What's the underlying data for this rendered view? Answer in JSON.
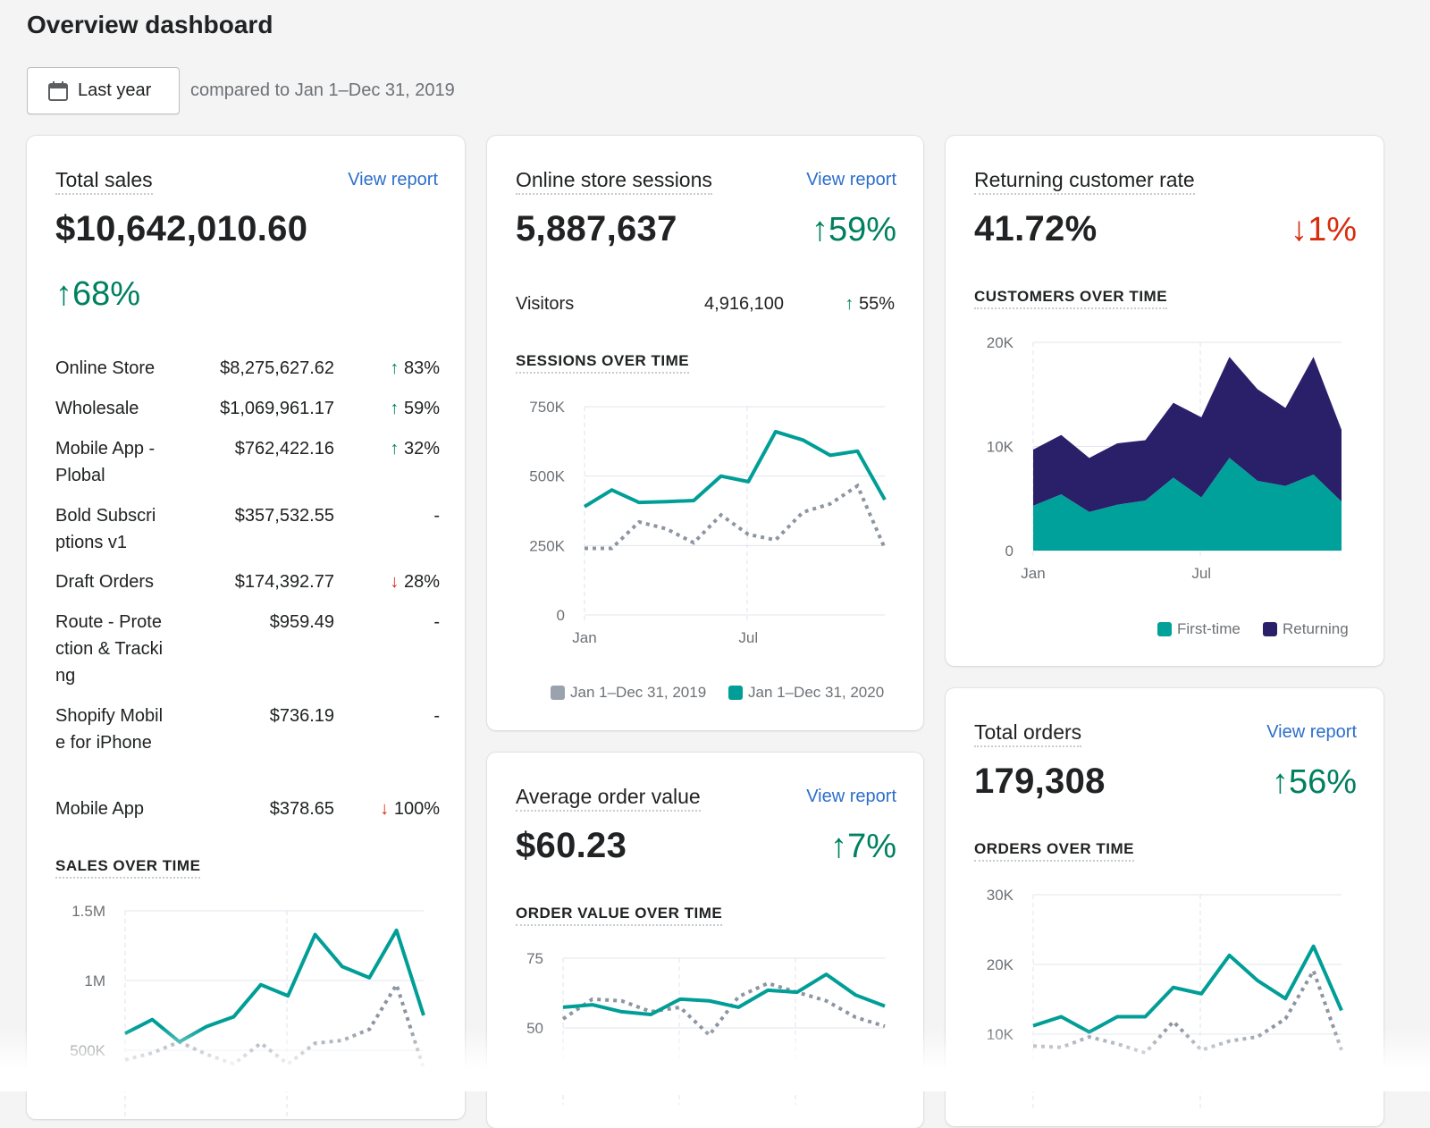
{
  "page": {
    "title": "Overview dashboard",
    "date_button": "Last year",
    "compare_text": "compared to Jan 1–Dec 31, 2019"
  },
  "colors": {
    "current": "#009e96",
    "previous": "#8c95a1",
    "returning": "#2a206a",
    "up": "#008060",
    "down": "#d72c0d",
    "link": "#2c6ecb"
  },
  "total_sales": {
    "title": "Total sales",
    "view_report": "View report",
    "value": "$10,642,010.60",
    "change": "68%",
    "change_dir": "up",
    "rows": [
      {
        "name": "Online Store",
        "value": "$8,275,627.62",
        "change": "83%",
        "dir": "up"
      },
      {
        "name": "Wholesale",
        "value": "$1,069,961.17",
        "change": "59%",
        "dir": "up"
      },
      {
        "name": "Mobile App - Plobal",
        "value": "$762,422.16",
        "change": "32%",
        "dir": "up"
      },
      {
        "name": "Bold Subscriptions v1",
        "value": "$357,532.55",
        "change": "-",
        "dir": "none"
      },
      {
        "name": "Draft Orders",
        "value": "$174,392.77",
        "change": "28%",
        "dir": "down"
      },
      {
        "name": "Route - Protection & Tracking",
        "value": "$959.49",
        "change": "-",
        "dir": "none"
      },
      {
        "name": "Shopify Mobile for iPhone",
        "value": "$736.19",
        "change": "-",
        "dir": "none"
      },
      {
        "name": "Mobile App",
        "value": "$378.65",
        "change": "100%",
        "dir": "down"
      }
    ],
    "chart_title": "SALES OVER TIME"
  },
  "sessions": {
    "title": "Online store sessions",
    "view_report": "View report",
    "value": "5,887,637",
    "change": "59%",
    "change_dir": "up",
    "visitors_label": "Visitors",
    "visitors_value": "4,916,100",
    "visitors_change": "55%",
    "chart_title": "SESSIONS OVER TIME",
    "legend": [
      "Jan 1–Dec 31, 2019",
      "Jan 1–Dec 31, 2020"
    ]
  },
  "returning": {
    "title": "Returning customer rate",
    "value": "41.72%",
    "change": "1%",
    "change_dir": "down",
    "chart_title": "CUSTOMERS OVER TIME",
    "legend": [
      "First-time",
      "Returning"
    ]
  },
  "aov": {
    "title": "Average order value",
    "view_report": "View report",
    "value": "$60.23",
    "change": "7%",
    "change_dir": "up",
    "chart_title": "ORDER VALUE OVER TIME"
  },
  "orders": {
    "title": "Total orders",
    "view_report": "View report",
    "value": "179,308",
    "change": "56%",
    "change_dir": "up",
    "chart_title": "ORDERS OVER TIME"
  },
  "chart_data": [
    {
      "id": "sales",
      "type": "line",
      "x": [
        "Jan",
        "Feb",
        "Mar",
        "Apr",
        "May",
        "Jun",
        "Jul",
        "Aug",
        "Sep",
        "Oct",
        "Nov",
        "Dec"
      ],
      "ylim": [
        0,
        1500000
      ],
      "yticks": [
        {
          "v": 500000,
          "label": "500K"
        },
        {
          "v": 1000000,
          "label": "1M"
        },
        {
          "v": 1500000,
          "label": "1.5M"
        }
      ],
      "series": [
        {
          "name": "Jan 1–Dec 31, 2019",
          "values": [
            430000,
            480000,
            560000,
            470000,
            400000,
            550000,
            400000,
            550000,
            570000,
            650000,
            970000,
            370000
          ]
        },
        {
          "name": "Jan 1–Dec 31, 2020",
          "values": [
            620000,
            720000,
            560000,
            670000,
            740000,
            970000,
            890000,
            1330000,
            1100000,
            1020000,
            1360000,
            750000
          ]
        }
      ]
    },
    {
      "id": "sessions",
      "type": "line",
      "x": [
        "Jan",
        "Feb",
        "Mar",
        "Apr",
        "May",
        "Jun",
        "Jul",
        "Aug",
        "Sep",
        "Oct",
        "Nov",
        "Dec"
      ],
      "ylim": [
        0,
        750000
      ],
      "xtick_labels": [
        "Jan",
        "Jul"
      ],
      "yticks": [
        {
          "v": 0,
          "label": "0"
        },
        {
          "v": 250000,
          "label": "250K"
        },
        {
          "v": 500000,
          "label": "500K"
        },
        {
          "v": 750000,
          "label": "750K"
        }
      ],
      "series": [
        {
          "name": "Jan 1–Dec 31, 2019",
          "values": [
            240000,
            240000,
            335000,
            310000,
            260000,
            360000,
            290000,
            270000,
            370000,
            400000,
            465000,
            240000
          ]
        },
        {
          "name": "Jan 1–Dec 31, 2020",
          "values": [
            390000,
            450000,
            405000,
            408000,
            412000,
            500000,
            480000,
            660000,
            630000,
            575000,
            590000,
            415000
          ]
        }
      ]
    },
    {
      "id": "customers",
      "type": "area",
      "stacked": true,
      "x": [
        "Jan",
        "Feb",
        "Mar",
        "Apr",
        "May",
        "Jun",
        "Jul",
        "Aug",
        "Sep",
        "Oct",
        "Nov",
        "Dec"
      ],
      "ylim": [
        0,
        20000
      ],
      "xtick_labels": [
        "Jan",
        "Jul"
      ],
      "yticks": [
        {
          "v": 0,
          "label": "0"
        },
        {
          "v": 10000,
          "label": "10K"
        },
        {
          "v": 20000,
          "label": "20K"
        }
      ],
      "series": [
        {
          "name": "First-time",
          "values": [
            4300,
            5400,
            3700,
            4400,
            4800,
            7000,
            5100,
            8900,
            6700,
            6200,
            7300,
            4700
          ]
        },
        {
          "name": "Returning",
          "values": [
            5400,
            5700,
            5200,
            5900,
            5800,
            7200,
            7700,
            9700,
            8800,
            7500,
            11300,
            6900
          ]
        }
      ]
    },
    {
      "id": "aov",
      "type": "line",
      "x": [
        "Jan",
        "Feb",
        "Mar",
        "Apr",
        "May",
        "Jun",
        "Jul",
        "Aug",
        "Sep",
        "Oct",
        "Nov",
        "Dec"
      ],
      "ylim": [
        25,
        75
      ],
      "yticks": [
        {
          "v": 50,
          "label": "50"
        },
        {
          "v": 75,
          "label": "75"
        }
      ],
      "series": [
        {
          "name": "Jan 1–Dec 31, 2019",
          "values": [
            53.2,
            60.3,
            59.7,
            55.8,
            57.4,
            47.4,
            61.2,
            66,
            62.8,
            59.7,
            53.8,
            50.6
          ]
        },
        {
          "name": "Jan 1–Dec 31, 2020",
          "values": [
            57.4,
            58.3,
            55.8,
            54.8,
            60.3,
            59.7,
            57.4,
            63.5,
            62.8,
            69.2,
            61.8,
            57.8
          ]
        }
      ]
    },
    {
      "id": "orders",
      "type": "line",
      "x": [
        "Jan",
        "Feb",
        "Mar",
        "Apr",
        "May",
        "Jun",
        "Jul",
        "Aug",
        "Sep",
        "Oct",
        "Nov",
        "Dec"
      ],
      "ylim": [
        0,
        30000
      ],
      "yticks": [
        {
          "v": 10000,
          "label": "10K"
        },
        {
          "v": 20000,
          "label": "20K"
        },
        {
          "v": 30000,
          "label": "30K"
        }
      ],
      "series": [
        {
          "name": "Jan 1–Dec 31, 2019",
          "values": [
            8300,
            8100,
            9600,
            8600,
            7300,
            11800,
            7700,
            9000,
            9600,
            12200,
            19100,
            7700
          ]
        },
        {
          "name": "Jan 1–Dec 31, 2020",
          "values": [
            11200,
            12500,
            10300,
            12500,
            12500,
            16700,
            15800,
            21300,
            17700,
            15100,
            22600,
            13400
          ]
        }
      ]
    }
  ]
}
